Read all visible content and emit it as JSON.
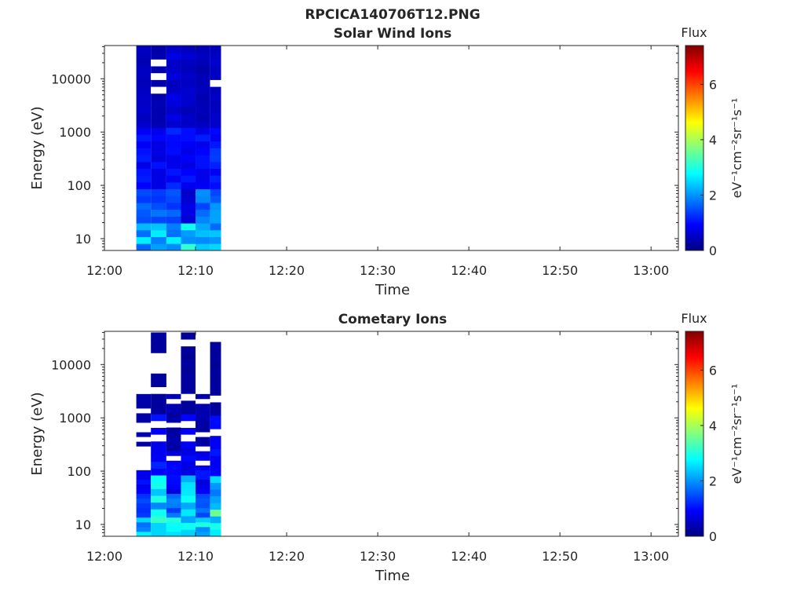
{
  "figure_title": "RPCICA140706T12.PNG",
  "colorscale": [
    "#000080",
    "#0000ff",
    "#0080ff",
    "#00ffff",
    "#80ff80",
    "#ffff00",
    "#ff8000",
    "#ff0000",
    "#800000"
  ],
  "chart_data": [
    {
      "type": "heatmap",
      "title": "Solar Wind Ions",
      "xlabel": "Time",
      "ylabel": "Energy (eV)",
      "y_scale": "log",
      "x_ticks": [
        "12:00",
        "12:10",
        "12:20",
        "12:30",
        "12:40",
        "12:50",
        "13:00"
      ],
      "x_tick_minutes": [
        0,
        10,
        20,
        30,
        40,
        50,
        60
      ],
      "xlim_minutes": [
        0,
        63
      ],
      "y_ticks": [
        "10",
        "100",
        "1000",
        "10000"
      ],
      "y_tick_values": [
        10,
        100,
        1000,
        10000
      ],
      "ylim": [
        6,
        42000
      ],
      "colorbar": {
        "title": "Flux",
        "label": "eV⁻¹cm⁻²sr⁻¹s⁻¹",
        "ticks": [
          "0",
          "2",
          "4",
          "6"
        ],
        "tick_values": [
          0,
          2,
          4,
          6
        ],
        "range": [
          0,
          7.4
        ]
      },
      "columns": [
        {
          "start_min": 3.5,
          "end_min": 5.1,
          "value_top": 0.5,
          "value_mid": 0.9,
          "value_low": 1.6,
          "value_bottom": 2.2
        },
        {
          "start_min": 5.1,
          "end_min": 6.8,
          "value_top": 0.4,
          "value_mid": 0.9,
          "value_low": 1.5,
          "value_bottom": 2.3
        },
        {
          "start_min": 6.8,
          "end_min": 8.4,
          "value_top": 0.6,
          "value_mid": 1.0,
          "value_low": 1.4,
          "value_bottom": 2.2
        },
        {
          "start_min": 8.4,
          "end_min": 10.0,
          "value_top": 0.5,
          "value_mid": 0.9,
          "value_low": 0.6,
          "value_bottom": 2.6
        },
        {
          "start_min": 10.0,
          "end_min": 11.6,
          "value_top": 0.4,
          "value_mid": 0.9,
          "value_low": 1.6,
          "value_bottom": 2.3
        },
        {
          "start_min": 11.6,
          "end_min": 12.8,
          "value_top": 0.5,
          "value_mid": 1.1,
          "value_low": 1.7,
          "value_bottom": 2.2
        }
      ]
    },
    {
      "type": "heatmap",
      "title": "Cometary Ions",
      "xlabel": "Time",
      "ylabel": "Energy (eV)",
      "y_scale": "log",
      "x_ticks": [
        "12:00",
        "12:10",
        "12:20",
        "12:30",
        "12:40",
        "12:50",
        "13:00"
      ],
      "x_tick_minutes": [
        0,
        10,
        20,
        30,
        40,
        50,
        60
      ],
      "xlim_minutes": [
        0,
        63
      ],
      "y_ticks": [
        "10",
        "100",
        "1000",
        "10000"
      ],
      "y_tick_values": [
        10,
        100,
        1000,
        10000
      ],
      "ylim": [
        6,
        42000
      ],
      "colorbar": {
        "title": "Flux",
        "label": "eV⁻¹cm⁻²sr⁻¹s⁻¹",
        "ticks": [
          "0",
          "2",
          "4",
          "6"
        ],
        "tick_values": [
          0,
          2,
          4,
          6
        ],
        "range": [
          0,
          7.4
        ]
      },
      "columns": [
        {
          "start_min": 3.5,
          "end_min": 5.1,
          "top_eV": 2800,
          "value_top": 0.3,
          "value_mid": 0.9,
          "value_low": 1.5,
          "value_bottom": 2.2
        },
        {
          "start_min": 5.1,
          "end_min": 6.8,
          "top_eV": 40000,
          "value_top": 0.2,
          "value_mid": 1.0,
          "value_low": 2.4,
          "value_bottom": 2.8
        },
        {
          "start_min": 6.8,
          "end_min": 8.4,
          "top_eV": 2800,
          "value_top": 0.3,
          "value_mid": 0.8,
          "value_low": 1.6,
          "value_bottom": 2.5
        },
        {
          "start_min": 8.4,
          "end_min": 10.0,
          "top_eV": 40000,
          "value_top": 0.2,
          "value_mid": 0.9,
          "value_low": 2.3,
          "value_bottom": 2.8
        },
        {
          "start_min": 10.0,
          "end_min": 11.6,
          "top_eV": 2800,
          "value_top": 0.3,
          "value_mid": 0.9,
          "value_low": 1.6,
          "value_bottom": 2.4
        },
        {
          "start_min": 11.6,
          "end_min": 12.8,
          "top_eV": 36000,
          "value_top": 0.2,
          "value_mid": 1.0,
          "value_low": 2.2,
          "value_bottom": 2.9
        }
      ]
    }
  ]
}
